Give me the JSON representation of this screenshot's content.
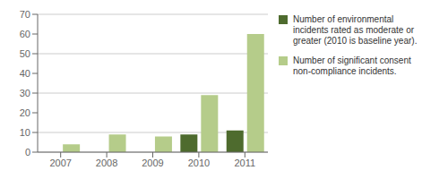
{
  "chart_data": {
    "type": "bar",
    "categories": [
      "2007",
      "2008",
      "2009",
      "2010",
      "2011"
    ],
    "series": [
      {
        "name": "Number of environmental\nincidents rated as moderate or\ngreater (2010 is baseline year).",
        "color": "#4e6b2e",
        "values": [
          0,
          0,
          0,
          9,
          11
        ]
      },
      {
        "name": "Number of significant consent\nnon-compliance incidents.",
        "color": "#b5cc8a",
        "values": [
          4,
          9,
          8,
          29,
          60
        ]
      }
    ],
    "ylim": [
      0,
      70
    ],
    "yticks": [
      0,
      10,
      20,
      30,
      40,
      50,
      60,
      70
    ],
    "grid": true,
    "legend": "right"
  }
}
